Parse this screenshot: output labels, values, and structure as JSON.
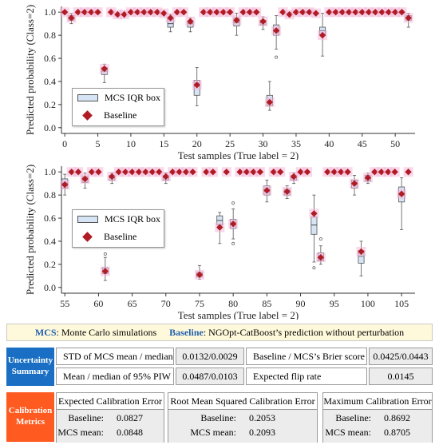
{
  "chart_data": [
    {
      "type": "box+scatter",
      "xlabel": "Test samples (True label = 2)",
      "ylabel": "Predicted probability (Class=2)",
      "xlim": [
        -0.5,
        53
      ],
      "ylim": [
        -0.05,
        1.05
      ],
      "xticks": [
        0,
        5,
        10,
        15,
        20,
        25,
        30,
        35,
        40,
        45,
        50
      ],
      "yticks": [
        0.0,
        0.2,
        0.4,
        0.6,
        0.8,
        1.0
      ],
      "legend": {
        "position": "lower-left",
        "entries": [
          "MCS IQR box",
          "Baseline"
        ]
      },
      "baseline": [
        {
          "x": 0,
          "y": 1.0
        },
        {
          "x": 1,
          "y": 0.95
        },
        {
          "x": 2,
          "y": 1.0
        },
        {
          "x": 3,
          "y": 1.0
        },
        {
          "x": 4,
          "y": 1.0
        },
        {
          "x": 5,
          "y": 1.0
        },
        {
          "x": 6,
          "y": 0.51
        },
        {
          "x": 7,
          "y": 1.0
        },
        {
          "x": 8,
          "y": 0.98
        },
        {
          "x": 9,
          "y": 0.98
        },
        {
          "x": 10,
          "y": 1.0
        },
        {
          "x": 11,
          "y": 1.0
        },
        {
          "x": 12,
          "y": 1.0
        },
        {
          "x": 13,
          "y": 1.0
        },
        {
          "x": 14,
          "y": 1.0
        },
        {
          "x": 15,
          "y": 0.99
        },
        {
          "x": 16,
          "y": 0.95
        },
        {
          "x": 17,
          "y": 1.0
        },
        {
          "x": 18,
          "y": 1.0
        },
        {
          "x": 19,
          "y": 0.92
        },
        {
          "x": 20,
          "y": 0.37
        },
        {
          "x": 21,
          "y": 1.0
        },
        {
          "x": 22,
          "y": 1.0
        },
        {
          "x": 23,
          "y": 1.0
        },
        {
          "x": 24,
          "y": 1.0
        },
        {
          "x": 25,
          "y": 1.0
        },
        {
          "x": 26,
          "y": 0.93
        },
        {
          "x": 27,
          "y": 1.0
        },
        {
          "x": 28,
          "y": 1.0
        },
        {
          "x": 29,
          "y": 1.0
        },
        {
          "x": 30,
          "y": 0.92
        },
        {
          "x": 31,
          "y": 0.22
        },
        {
          "x": 32,
          "y": 0.84
        },
        {
          "x": 33,
          "y": 1.0
        },
        {
          "x": 34,
          "y": 0.98
        },
        {
          "x": 35,
          "y": 1.0
        },
        {
          "x": 36,
          "y": 1.0
        },
        {
          "x": 37,
          "y": 1.0
        },
        {
          "x": 38,
          "y": 0.99
        },
        {
          "x": 39,
          "y": 0.8
        },
        {
          "x": 40,
          "y": 1.0
        },
        {
          "x": 41,
          "y": 1.0
        },
        {
          "x": 42,
          "y": 1.0
        },
        {
          "x": 43,
          "y": 1.0
        },
        {
          "x": 44,
          "y": 1.0
        },
        {
          "x": 45,
          "y": 1.0
        },
        {
          "x": 46,
          "y": 1.0
        },
        {
          "x": 47,
          "y": 1.0
        },
        {
          "x": 48,
          "y": 1.0
        },
        {
          "x": 49,
          "y": 1.0
        },
        {
          "x": 50,
          "y": 1.0
        },
        {
          "x": 51,
          "y": 1.0
        },
        {
          "x": 52,
          "y": 0.95
        }
      ],
      "boxes": [
        {
          "x": 1,
          "q1": 0.93,
          "med": 0.95,
          "q3": 0.97,
          "wl": 0.9,
          "wh": 0.99,
          "out": []
        },
        {
          "x": 6,
          "q1": 0.46,
          "med": 0.49,
          "q3": 0.52,
          "wl": 0.39,
          "wh": 0.55,
          "out": []
        },
        {
          "x": 16,
          "q1": 0.87,
          "med": 0.9,
          "q3": 0.95,
          "wl": 0.83,
          "wh": 0.98,
          "out": []
        },
        {
          "x": 19,
          "q1": 0.87,
          "med": 0.9,
          "q3": 0.92,
          "wl": 0.83,
          "wh": 0.95,
          "out": []
        },
        {
          "x": 20,
          "q1": 0.28,
          "med": 0.36,
          "q3": 0.41,
          "wl": 0.19,
          "wh": 0.52,
          "out": []
        },
        {
          "x": 26,
          "q1": 0.88,
          "med": 0.91,
          "q3": 0.95,
          "wl": 0.8,
          "wh": 0.99,
          "out": []
        },
        {
          "x": 30,
          "q1": 0.89,
          "med": 0.91,
          "q3": 0.93,
          "wl": 0.85,
          "wh": 0.96,
          "out": []
        },
        {
          "x": 31,
          "q1": 0.19,
          "med": 0.22,
          "q3": 0.28,
          "wl": 0.15,
          "wh": 0.4,
          "out": []
        },
        {
          "x": 32,
          "q1": 0.8,
          "med": 0.84,
          "q3": 0.89,
          "wl": 0.68,
          "wh": 0.97,
          "out": [
            0.61
          ]
        },
        {
          "x": 39,
          "q1": 0.8,
          "med": 0.84,
          "q3": 0.87,
          "wl": 0.62,
          "wh": 0.99,
          "out": []
        },
        {
          "x": 52,
          "q1": 0.93,
          "med": 0.95,
          "q3": 0.97,
          "wl": 0.87,
          "wh": 0.99,
          "out": []
        }
      ]
    },
    {
      "type": "box+scatter",
      "xlabel": "Test samples (True label = 2)",
      "ylabel": "Predicted probability (Class=2)",
      "xlim": [
        54.5,
        107
      ],
      "ylim": [
        -0.05,
        1.05
      ],
      "xticks": [
        55,
        60,
        65,
        70,
        75,
        80,
        85,
        90,
        95,
        100,
        105
      ],
      "yticks": [
        0.0,
        0.2,
        0.4,
        0.6,
        0.8,
        1.0
      ],
      "legend": {
        "position": "left",
        "entries": [
          "MCS IQR box",
          "Baseline"
        ]
      },
      "baseline": [
        {
          "x": 55,
          "y": 0.89
        },
        {
          "x": 56,
          "y": 1.0
        },
        {
          "x": 57,
          "y": 1.0
        },
        {
          "x": 58,
          "y": 0.94
        },
        {
          "x": 59,
          "y": 1.0
        },
        {
          "x": 60,
          "y": 1.0
        },
        {
          "x": 61,
          "y": 0.14
        },
        {
          "x": 62,
          "y": 0.96
        },
        {
          "x": 63,
          "y": 1.0
        },
        {
          "x": 64,
          "y": 1.0
        },
        {
          "x": 65,
          "y": 1.0
        },
        {
          "x": 66,
          "y": 1.0
        },
        {
          "x": 67,
          "y": 1.0
        },
        {
          "x": 68,
          "y": 1.0
        },
        {
          "x": 69,
          "y": 1.0
        },
        {
          "x": 70,
          "y": 0.96
        },
        {
          "x": 71,
          "y": 1.0
        },
        {
          "x": 72,
          "y": 1.0
        },
        {
          "x": 73,
          "y": 1.0
        },
        {
          "x": 74,
          "y": 1.0
        },
        {
          "x": 75,
          "y": 0.11
        },
        {
          "x": 76,
          "y": 1.0
        },
        {
          "x": 77,
          "y": 1.0
        },
        {
          "x": 78,
          "y": 0.52
        },
        {
          "x": 79,
          "y": 1.0
        },
        {
          "x": 80,
          "y": 0.55
        },
        {
          "x": 81,
          "y": 1.0
        },
        {
          "x": 82,
          "y": 1.0
        },
        {
          "x": 83,
          "y": 1.0
        },
        {
          "x": 84,
          "y": 1.0
        },
        {
          "x": 85,
          "y": 0.84
        },
        {
          "x": 86,
          "y": 1.0
        },
        {
          "x": 87,
          "y": 1.0
        },
        {
          "x": 88,
          "y": 0.83
        },
        {
          "x": 89,
          "y": 0.96
        },
        {
          "x": 90,
          "y": 1.0
        },
        {
          "x": 91,
          "y": 1.0
        },
        {
          "x": 92,
          "y": 0.64
        },
        {
          "x": 93,
          "y": 0.26
        },
        {
          "x": 94,
          "y": 1.0
        },
        {
          "x": 95,
          "y": 1.0
        },
        {
          "x": 96,
          "y": 1.0
        },
        {
          "x": 97,
          "y": 1.0
        },
        {
          "x": 98,
          "y": 0.9
        },
        {
          "x": 99,
          "y": 0.31
        },
        {
          "x": 100,
          "y": 0.95
        },
        {
          "x": 101,
          "y": 1.0
        },
        {
          "x": 102,
          "y": 1.0
        },
        {
          "x": 103,
          "y": 1.0
        },
        {
          "x": 104,
          "y": 1.0
        },
        {
          "x": 105,
          "y": 0.81
        },
        {
          "x": 106,
          "y": 1.0
        }
      ],
      "boxes": [
        {
          "x": 55,
          "q1": 0.86,
          "med": 0.9,
          "q3": 0.94,
          "wl": 0.8,
          "wh": 0.98,
          "out": []
        },
        {
          "x": 58,
          "q1": 0.91,
          "med": 0.94,
          "q3": 0.96,
          "wl": 0.86,
          "wh": 0.99,
          "out": []
        },
        {
          "x": 61,
          "q1": 0.12,
          "med": 0.14,
          "q3": 0.17,
          "wl": 0.06,
          "wh": 0.26,
          "out": [
            0.29
          ]
        },
        {
          "x": 62,
          "q1": 0.93,
          "med": 0.95,
          "q3": 0.97,
          "wl": 0.9,
          "wh": 0.99,
          "out": []
        },
        {
          "x": 70,
          "q1": 0.93,
          "med": 0.95,
          "q3": 0.97,
          "wl": 0.9,
          "wh": 0.99,
          "out": []
        },
        {
          "x": 75,
          "q1": 0.09,
          "med": 0.11,
          "q3": 0.13,
          "wl": 0.07,
          "wh": 0.19,
          "out": []
        },
        {
          "x": 78,
          "q1": 0.54,
          "med": 0.58,
          "q3": 0.62,
          "wl": 0.38,
          "wh": 0.65,
          "out": []
        },
        {
          "x": 80,
          "q1": 0.51,
          "med": 0.55,
          "q3": 0.59,
          "wl": 0.42,
          "wh": 0.68,
          "out": [
            0.38,
            0.73
          ]
        },
        {
          "x": 85,
          "q1": 0.8,
          "med": 0.84,
          "q3": 0.88,
          "wl": 0.74,
          "wh": 0.93,
          "out": []
        },
        {
          "x": 88,
          "q1": 0.8,
          "med": 0.82,
          "q3": 0.85,
          "wl": 0.77,
          "wh": 0.88,
          "out": []
        },
        {
          "x": 89,
          "q1": 0.93,
          "med": 0.95,
          "q3": 0.97,
          "wl": 0.9,
          "wh": 0.99,
          "out": []
        },
        {
          "x": 92,
          "q1": 0.46,
          "med": 0.54,
          "q3": 0.61,
          "wl": 0.22,
          "wh": 0.8,
          "out": [
            0.17
          ]
        },
        {
          "x": 93,
          "q1": 0.23,
          "med": 0.26,
          "q3": 0.3,
          "wl": 0.2,
          "wh": 0.36,
          "out": [
            0.42
          ]
        },
        {
          "x": 98,
          "q1": 0.86,
          "med": 0.9,
          "q3": 0.93,
          "wl": 0.8,
          "wh": 0.97,
          "out": []
        },
        {
          "x": 99,
          "q1": 0.21,
          "med": 0.27,
          "q3": 0.32,
          "wl": 0.1,
          "wh": 0.4,
          "out": []
        },
        {
          "x": 100,
          "q1": 0.92,
          "med": 0.95,
          "q3": 0.97,
          "wl": 0.9,
          "wh": 0.99,
          "out": []
        },
        {
          "x": 105,
          "q1": 0.74,
          "med": 0.8,
          "q3": 0.87,
          "wl": 0.5,
          "wh": 0.95,
          "out": []
        }
      ]
    }
  ],
  "banner": {
    "mcs_term": "MCS",
    "mcs_desc": ": Monte Carlo simulations",
    "baseline_term": "Baseline",
    "baseline_desc": ": NGOpt-CatBoost’s prediction without perturbation"
  },
  "uncertainty": {
    "label": "Uncertainty Summary",
    "color": "#1a6fc4",
    "rows": [
      {
        "metric": "STD of MCS mean / median",
        "value": "0.0132/0.0029",
        "metric2": "Baseline / MCS’s Brier score",
        "value2": "0.0425/0.0443"
      },
      {
        "metric": "Mean / median of 95% PIW",
        "value": "0.0487/0.0103",
        "metric2": "Expected flip rate",
        "value2": "0.0145"
      }
    ]
  },
  "calibration": {
    "label": "Calibration Metrics",
    "color": "#ff5a1f",
    "baseline_label": "Baseline:",
    "mcs_label": "MCS mean:",
    "metrics": [
      {
        "name": "Expected Calibration Error",
        "baseline": "0.0827",
        "mcs": "0.0848"
      },
      {
        "name": "Root Mean Squared Calibration Error",
        "baseline": "0.2053",
        "mcs": "0.2093"
      },
      {
        "name": "Maximum Calibration Error",
        "baseline": "0.8692",
        "mcs": "0.8705"
      }
    ]
  },
  "colors": {
    "baseline_marker": "#b01c25",
    "box_fill": "#d6e4f5",
    "halo": "#f2b8d8"
  }
}
